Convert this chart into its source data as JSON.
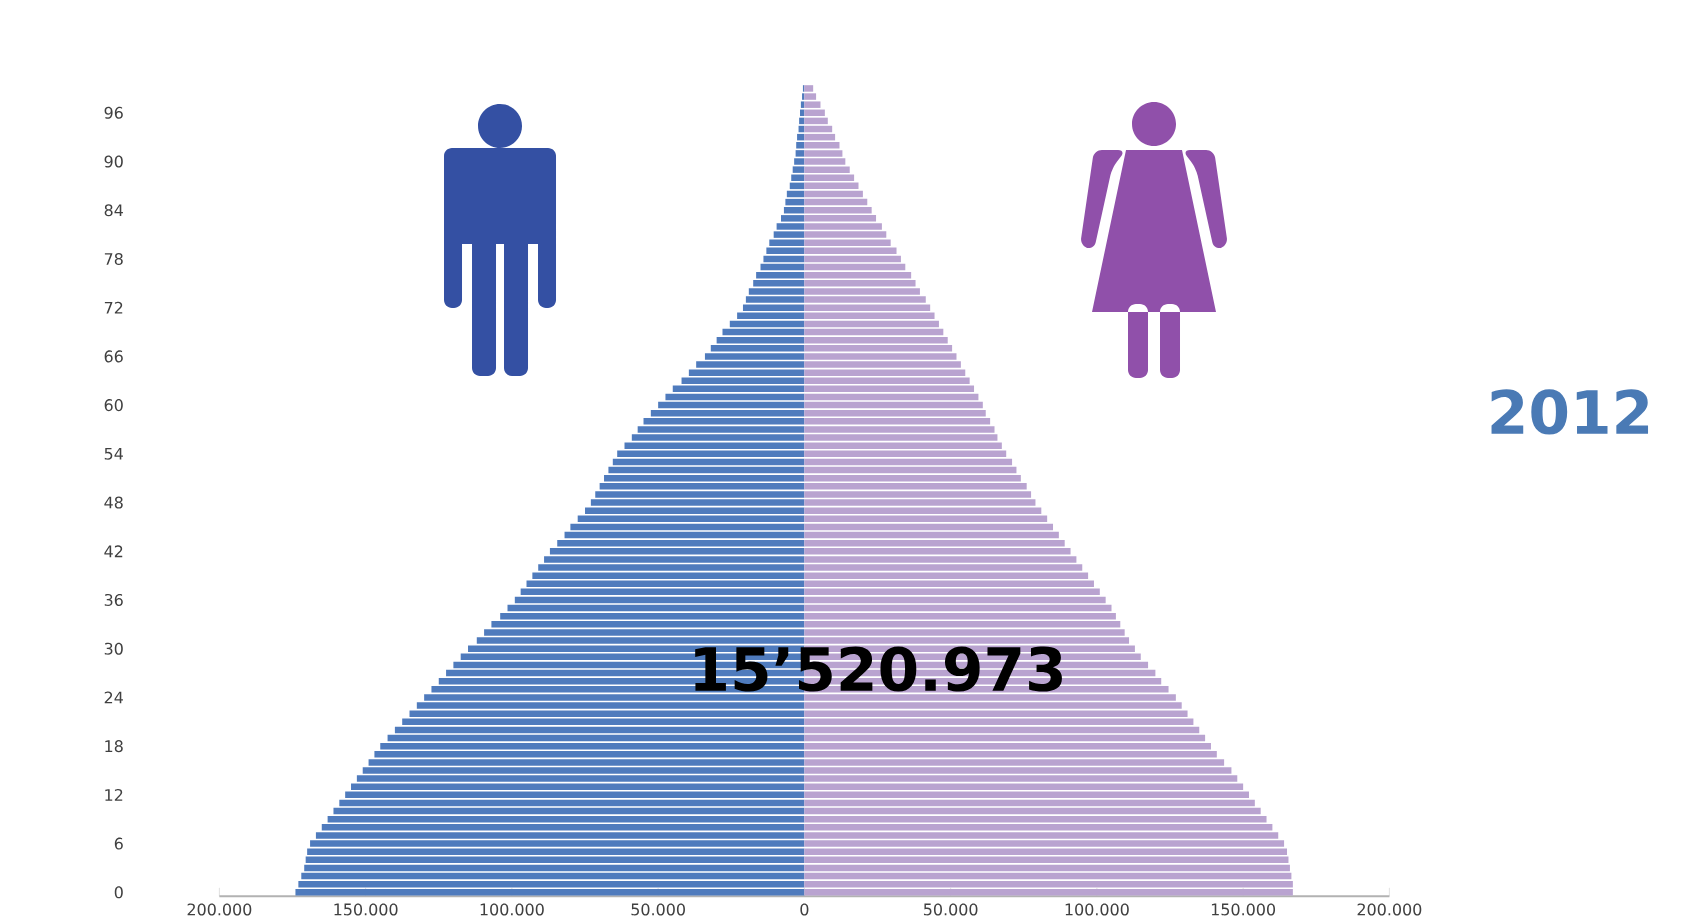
{
  "chart_data": {
    "type": "bar",
    "orientation": "horizontal",
    "stacked": true,
    "categories": [
      null,
      null,
      null,
      "96",
      null,
      null,
      null,
      null,
      null,
      "90",
      null,
      null,
      null,
      null,
      null,
      "84",
      null,
      null,
      null,
      null,
      null,
      "78",
      null,
      null,
      null,
      null,
      null,
      "72",
      null,
      null,
      null,
      null,
      null,
      "66",
      null,
      null,
      null,
      null,
      null,
      "60",
      null,
      null,
      null,
      null,
      null,
      "54",
      null,
      null,
      null,
      null,
      null,
      "48",
      null,
      null,
      null,
      null,
      null,
      "42",
      null,
      null,
      null,
      null,
      null,
      "36",
      null,
      null,
      null,
      null,
      null,
      "30",
      null,
      null,
      null,
      null,
      null,
      "24",
      null,
      null,
      null,
      null,
      null,
      "18",
      null,
      null,
      null,
      null,
      null,
      "12",
      null,
      null,
      null,
      null,
      null,
      "6",
      null,
      null,
      null,
      null,
      null,
      "0"
    ],
    "series": [
      {
        "color": "#4f7bbd",
        "values": [
          -500,
          -800,
          -1200,
          -1500,
          -1800,
          -2000,
          -2500,
          -2800,
          -3000,
          -3500,
          -4000,
          -4500,
          -5000,
          -6000,
          -6500,
          -7000,
          -8000,
          -9500,
          -10500,
          -12000,
          -13000,
          -14000,
          -15000,
          -16500,
          -17500,
          -19000,
          -20000,
          -21000,
          -23000,
          -25500,
          -28000,
          -30000,
          -32000,
          -34000,
          -37000,
          -39500,
          -42000,
          -45000,
          -47500,
          -50000,
          -52500,
          -55000,
          -57000,
          -59000,
          -61500,
          -64000,
          -65500,
          -67000,
          -68500,
          -70000,
          -71500,
          -73000,
          -75000,
          -77500,
          -80000,
          -82000,
          -84500,
          -87000,
          -89000,
          -91000,
          -93000,
          -95000,
          -97000,
          -99000,
          -101500,
          -104000,
          -107000,
          -109500,
          -112000,
          -115000,
          -117500,
          -120000,
          -122500,
          -125000,
          -127500,
          -130000,
          -132500,
          -135000,
          -137500,
          -140000,
          -142500,
          -145000,
          -147000,
          -149000,
          -151000,
          -153000,
          -155000,
          -157000,
          -159000,
          -161000,
          -163000,
          -165000,
          -167000,
          -169000,
          -170000,
          -170500,
          -171000,
          -172000,
          -173000,
          -174000
        ]
      },
      {
        "color": "#b9a3d0",
        "values": [
          3000,
          4000,
          5500,
          7000,
          8000,
          9500,
          10500,
          12000,
          13000,
          14000,
          15500,
          17000,
          18500,
          20000,
          21500,
          23000,
          24500,
          26500,
          28000,
          29500,
          31500,
          33000,
          34500,
          36500,
          38000,
          39500,
          41500,
          43000,
          44500,
          46000,
          47500,
          49000,
          50500,
          52000,
          53500,
          55000,
          56500,
          58000,
          59500,
          61000,
          62000,
          63500,
          65000,
          66000,
          67500,
          69000,
          71000,
          72500,
          74000,
          76000,
          77500,
          79000,
          81000,
          83000,
          85000,
          87000,
          89000,
          91000,
          93000,
          95000,
          97000,
          99000,
          101000,
          103000,
          105000,
          106500,
          108000,
          109500,
          111000,
          113000,
          115000,
          117500,
          120000,
          122000,
          124500,
          127000,
          129000,
          131000,
          133000,
          135000,
          137000,
          139000,
          141000,
          143500,
          146000,
          148000,
          150000,
          152000,
          154000,
          156000,
          158000,
          160000,
          162000,
          164000,
          165000,
          165500,
          166000,
          166500,
          167000,
          167000
        ]
      }
    ],
    "xlim": [
      -200000,
      200000
    ],
    "xticks": [
      {
        "value": -200000,
        "label": "200.000"
      },
      {
        "value": -150000,
        "label": "150.000"
      },
      {
        "value": -100000,
        "label": "100.000"
      },
      {
        "value": -50000,
        "label": "50.000"
      },
      0,
      {
        "value": 50000,
        "label": "50.000"
      },
      {
        "value": 100000,
        "label": "100.000"
      },
      {
        "value": 150000,
        "label": "150.000"
      },
      {
        "value": 200000,
        "label": "200.000"
      }
    ],
    "annotations": [
      "15’520.973",
      "2012"
    ]
  }
}
